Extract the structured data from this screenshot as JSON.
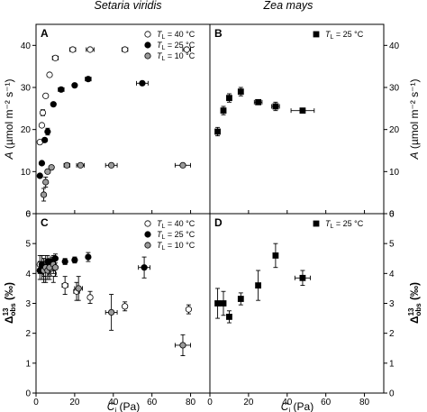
{
  "figure": {
    "titles": [
      "Setaria viridis",
      "Zea mays"
    ],
    "ylabel_top": {
      "sym": "A",
      "unit": "(µmol m⁻² s⁻¹)"
    },
    "ylabel_bottom": {
      "sym": "Δ",
      "sup": "13",
      "sub": "obs",
      "unit": "(‰)"
    },
    "xlabel": {
      "sym": "C",
      "sub": "i",
      "unit": "(Pa)"
    }
  },
  "chart_data": [
    {
      "panel": "A",
      "type": "scatter",
      "title": "Setaria viridis",
      "xlim": [
        0,
        90
      ],
      "ylim": [
        0,
        45
      ],
      "xticks": [
        0,
        20,
        40,
        60,
        80
      ],
      "yticks": [
        0,
        10,
        20,
        30,
        40
      ],
      "legend_placement": "top-right",
      "series": [
        {
          "legend": {
            "prefix": "T",
            "sub": "L",
            "suffix": " = 40 °C"
          },
          "marker": "circle-open",
          "points": [
            {
              "x": 2,
              "y": 17
            },
            {
              "x": 3,
              "y": 21
            },
            {
              "x": 3.5,
              "y": 24,
              "yerr": 0.7
            },
            {
              "x": 5,
              "y": 28
            },
            {
              "x": 7,
              "y": 33
            },
            {
              "x": 10,
              "y": 37,
              "xerr": 1.5
            },
            {
              "x": 19,
              "y": 39,
              "xerr": 1.5
            },
            {
              "x": 28,
              "y": 39,
              "xerr": 2
            },
            {
              "x": 46,
              "y": 39,
              "xerr": 1.5
            },
            {
              "x": 78,
              "y": 39,
              "xerr": 2
            }
          ]
        },
        {
          "legend": {
            "prefix": "T",
            "sub": "L",
            "suffix": " = 25 °C"
          },
          "marker": "circle-filled",
          "points": [
            {
              "x": 2,
              "y": 9
            },
            {
              "x": 3,
              "y": 12
            },
            {
              "x": 4.5,
              "y": 17.5
            },
            {
              "x": 6,
              "y": 19.5,
              "yerr": 0.8
            },
            {
              "x": 9,
              "y": 26
            },
            {
              "x": 13,
              "y": 29.5,
              "xerr": 1.5
            },
            {
              "x": 20,
              "y": 30.5
            },
            {
              "x": 27,
              "y": 32,
              "xerr": 1.5
            },
            {
              "x": 55,
              "y": 31,
              "xerr": 3
            }
          ]
        },
        {
          "legend": {
            "prefix": "T",
            "sub": "L",
            "suffix": " = 10 °C"
          },
          "marker": "circle-gray",
          "points": [
            {
              "x": 4,
              "y": 4.5,
              "yerr": 1.5
            },
            {
              "x": 5,
              "y": 7.5,
              "yerr": 1.2
            },
            {
              "x": 6,
              "y": 10
            },
            {
              "x": 8,
              "y": 11,
              "xerr": 1
            },
            {
              "x": 16,
              "y": 11.5,
              "xerr": 1.5
            },
            {
              "x": 23,
              "y": 11.5,
              "xerr": 2
            },
            {
              "x": 39,
              "y": 11.5,
              "xerr": 3
            },
            {
              "x": 76,
              "y": 11.5,
              "xerr": 4
            }
          ]
        }
      ]
    },
    {
      "panel": "B",
      "type": "scatter",
      "title": "Zea mays",
      "xlim": [
        0,
        90
      ],
      "ylim": [
        0,
        45
      ],
      "xticks": [
        0,
        20,
        40,
        60,
        80
      ],
      "yticks": [
        0,
        10,
        20,
        30,
        40
      ],
      "legend_placement": "top-right",
      "series": [
        {
          "legend": {
            "prefix": "T",
            "sub": "L",
            "suffix": " = 25 °C"
          },
          "marker": "square-filled",
          "points": [
            {
              "x": 4,
              "y": 19.5,
              "yerr": 1
            },
            {
              "x": 7,
              "y": 24.5,
              "yerr": 1
            },
            {
              "x": 10,
              "y": 27.5,
              "yerr": 1
            },
            {
              "x": 16,
              "y": 29,
              "yerr": 1
            },
            {
              "x": 25,
              "y": 26.5,
              "xerr": 2
            },
            {
              "x": 34,
              "y": 25.5,
              "xerr": 2,
              "yerr": 1
            },
            {
              "x": 48,
              "y": 24.5,
              "xerr": 6
            }
          ]
        }
      ]
    },
    {
      "panel": "C",
      "type": "scatter",
      "xlim": [
        0,
        90
      ],
      "ylim": [
        0,
        6
      ],
      "xticks": [
        0,
        20,
        40,
        60,
        80
      ],
      "yticks": [
        0,
        1,
        2,
        3,
        4,
        5,
        6
      ],
      "legend_placement": "top-right",
      "series": [
        {
          "legend": {
            "prefix": "T",
            "sub": "L",
            "suffix": " = 40 °C"
          },
          "marker": "circle-open",
          "points": [
            {
              "x": 2,
              "y": 4.3,
              "yerr": 0.3
            },
            {
              "x": 3,
              "y": 4.2,
              "yerr": 0.4
            },
            {
              "x": 4,
              "y": 4.1,
              "yerr": 0.3
            },
            {
              "x": 5,
              "y": 4.0,
              "yerr": 0.3
            },
            {
              "x": 7,
              "y": 4.1,
              "yerr": 0.3
            },
            {
              "x": 9,
              "y": 4.0,
              "yerr": 0.3
            },
            {
              "x": 15,
              "y": 3.6,
              "xerr": 1.5,
              "yerr": 0.3
            },
            {
              "x": 21,
              "y": 3.4,
              "xerr": 1.5,
              "yerr": 0.3
            },
            {
              "x": 28,
              "y": 3.2,
              "yerr": 0.2
            },
            {
              "x": 46,
              "y": 2.9,
              "yerr": 0.15
            },
            {
              "x": 79,
              "y": 2.8,
              "yerr": 0.15
            }
          ]
        },
        {
          "legend": {
            "prefix": "T",
            "sub": "L",
            "suffix": " = 25 °C"
          },
          "marker": "circle-filled",
          "points": [
            {
              "x": 2,
              "y": 4.1,
              "yerr": 0.3
            },
            {
              "x": 3,
              "y": 4.3,
              "yerr": 0.3
            },
            {
              "x": 4,
              "y": 4.2,
              "yerr": 0.3
            },
            {
              "x": 6,
              "y": 4.4,
              "yerr": 0.2
            },
            {
              "x": 8,
              "y": 4.4,
              "yerr": 0.15
            },
            {
              "x": 10,
              "y": 4.5,
              "yerr": 0.15
            },
            {
              "x": 15,
              "y": 4.4,
              "yerr": 0.1
            },
            {
              "x": 20,
              "y": 4.45,
              "yerr": 0.1
            },
            {
              "x": 27,
              "y": 4.55,
              "yerr": 0.15
            },
            {
              "x": 56,
              "y": 4.2,
              "xerr": 3,
              "yerr": 0.35
            }
          ]
        },
        {
          "legend": {
            "prefix": "T",
            "sub": "L",
            "suffix": " = 10 °C"
          },
          "marker": "circle-gray",
          "points": [
            {
              "x": 4,
              "y": 4.1,
              "yerr": 0.4
            },
            {
              "x": 5,
              "y": 4.2,
              "yerr": 0.4
            },
            {
              "x": 6,
              "y": 4.1,
              "yerr": 0.3
            },
            {
              "x": 7,
              "y": 4.2,
              "yerr": 0.3
            },
            {
              "x": 9,
              "y": 4.3,
              "yerr": 0.3
            },
            {
              "x": 10,
              "y": 4.2,
              "yerr": 0.3
            },
            {
              "x": 22,
              "y": 3.5,
              "xerr": 2,
              "yerr": 0.4
            },
            {
              "x": 39,
              "y": 2.7,
              "xerr": 3,
              "yerr": 0.6
            },
            {
              "x": 76,
              "y": 1.6,
              "xerr": 4,
              "yerr": 0.35
            }
          ]
        }
      ]
    },
    {
      "panel": "D",
      "type": "scatter",
      "xlim": [
        0,
        90
      ],
      "ylim": [
        0,
        6
      ],
      "xticks": [
        0,
        20,
        40,
        60,
        80
      ],
      "yticks": [
        0,
        1,
        2,
        3,
        4,
        5,
        6
      ],
      "legend_placement": "top-right",
      "series": [
        {
          "legend": {
            "prefix": "T",
            "sub": "L",
            "suffix": " = 25 °C"
          },
          "marker": "square-filled",
          "points": [
            {
              "x": 4,
              "y": 3.0,
              "yerr": 0.5
            },
            {
              "x": 7,
              "y": 3.0,
              "yerr": 0.4
            },
            {
              "x": 10,
              "y": 2.55,
              "yerr": 0.2
            },
            {
              "x": 16,
              "y": 3.15,
              "yerr": 0.2
            },
            {
              "x": 25,
              "y": 3.6,
              "yerr": 0.5
            },
            {
              "x": 34,
              "y": 4.6,
              "yerr": 0.4
            },
            {
              "x": 48,
              "y": 3.85,
              "xerr": 4,
              "yerr": 0.25
            }
          ]
        }
      ]
    }
  ]
}
